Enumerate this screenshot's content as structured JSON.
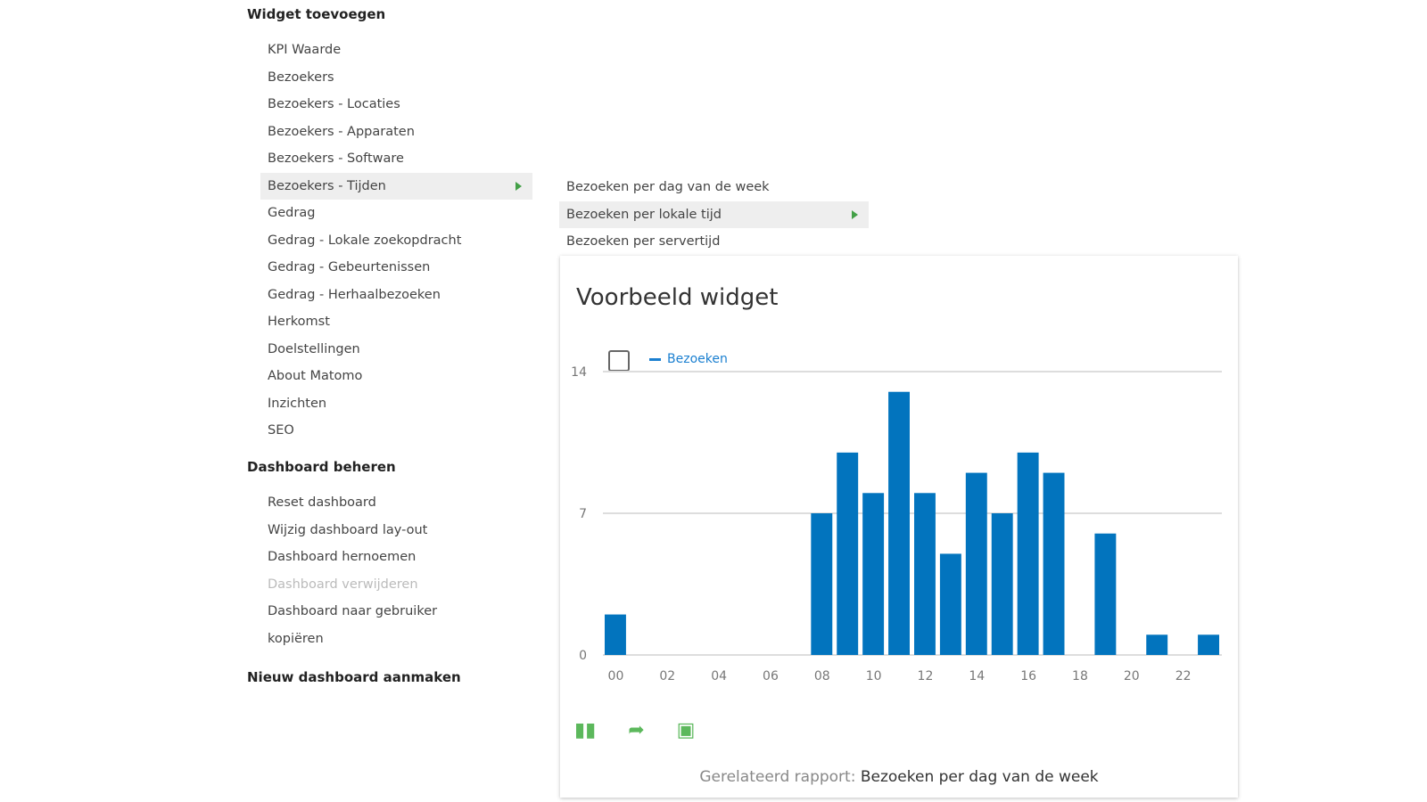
{
  "sections": {
    "add_widget": "Widget toevoegen",
    "manage": "Dashboard beheren",
    "new": "Nieuw dashboard aanmaken"
  },
  "widget_menu": [
    "KPI Waarde",
    "Bezoekers",
    "Bezoekers - Locaties",
    "Bezoekers - Apparaten",
    "Bezoekers - Software",
    "Bezoekers - Tijden",
    "Gedrag",
    "Gedrag - Lokale zoekopdracht",
    "Gedrag - Gebeurtenissen",
    "Gedrag - Herhaalbezoeken",
    "Herkomst",
    "Doelstellingen",
    "About Matomo",
    "Inzichten",
    "SEO"
  ],
  "manage_menu": [
    "Reset dashboard",
    "Wijzig dashboard lay-out",
    "Dashboard hernoemen",
    "Dashboard verwijderen",
    "Dashboard naar gebruiker",
    "kopiëren"
  ],
  "submenu": [
    "Bezoeken per dag van de week",
    "Bezoeken per lokale tijd",
    "Bezoeken per servertijd"
  ],
  "widget": {
    "title": "Voorbeeld widget",
    "related_label": "Gerelateerd rapport:",
    "related_link": "Bezoeken per dag van de week"
  },
  "colors": {
    "bar": "#0274be",
    "accent": "#5cb85c"
  },
  "chart_data": {
    "type": "bar",
    "categories": [
      "00",
      "01",
      "02",
      "03",
      "04",
      "05",
      "06",
      "07",
      "08",
      "09",
      "10",
      "11",
      "12",
      "13",
      "14",
      "15",
      "16",
      "17",
      "18",
      "19",
      "20",
      "21",
      "22",
      "23"
    ],
    "x_tick_labels": [
      "00",
      "02",
      "04",
      "06",
      "08",
      "10",
      "12",
      "14",
      "16",
      "18",
      "20",
      "22"
    ],
    "series": [
      {
        "name": "Bezoeken",
        "values": [
          2,
          0,
          0,
          0,
          0,
          0,
          0,
          0,
          7,
          10,
          8,
          13,
          8,
          5,
          9,
          7,
          10,
          9,
          0,
          6,
          0,
          1,
          0,
          1
        ]
      }
    ],
    "y_ticks": [
      0,
      7,
      14
    ],
    "ylim": [
      0,
      14
    ],
    "grid": true,
    "legend": "top-left"
  }
}
